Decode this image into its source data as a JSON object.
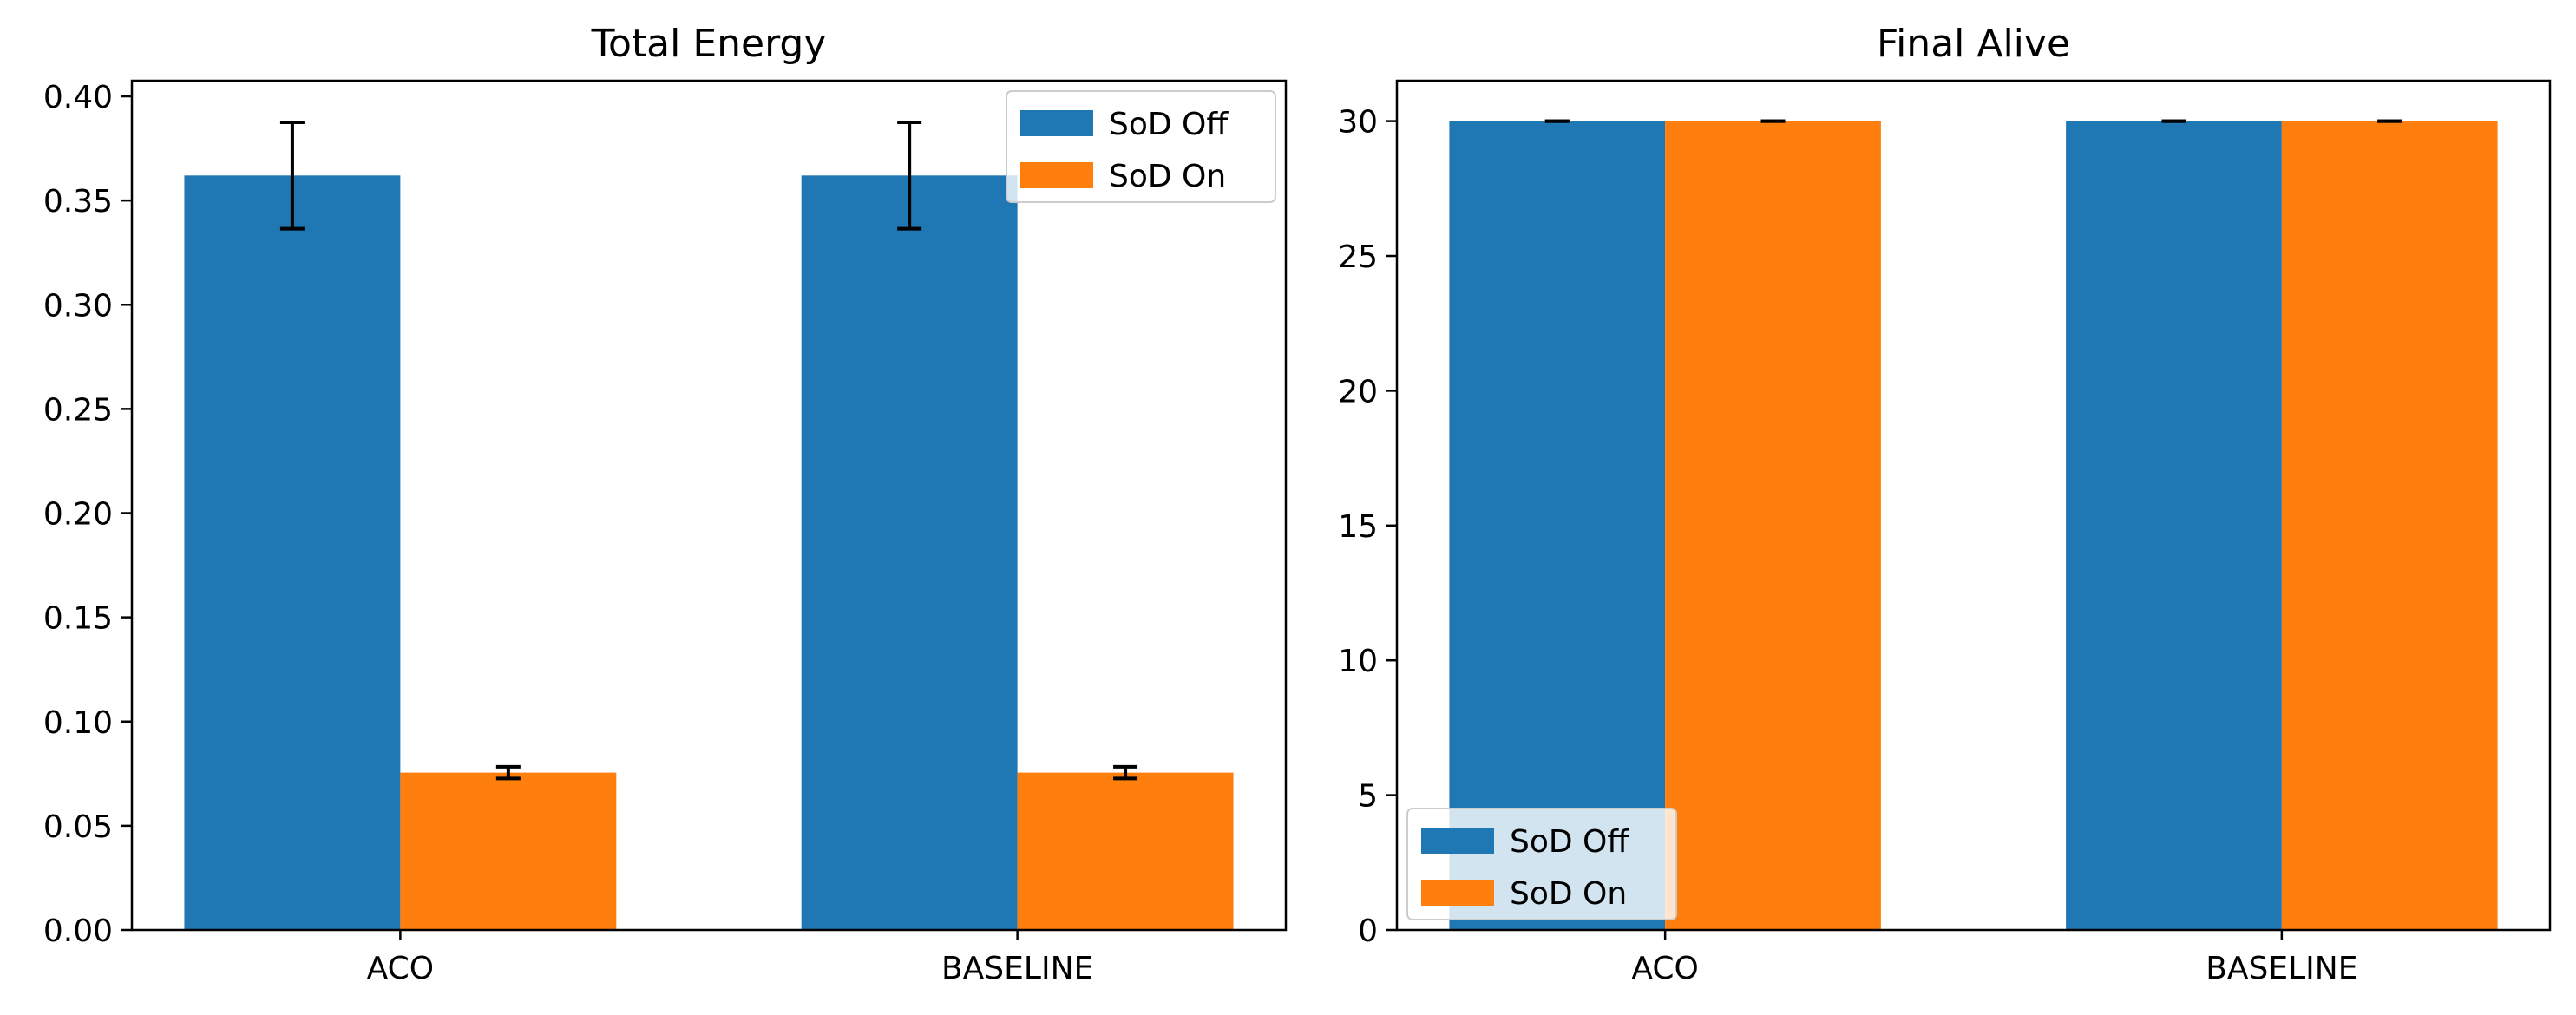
{
  "colors": {
    "sod_off": "#1f77b4",
    "sod_on": "#ff7f0e"
  },
  "chart_data": [
    {
      "type": "bar",
      "title": "Total Energy",
      "categories": [
        "ACO",
        "BASELINE"
      ],
      "series": [
        {
          "name": "SoD Off",
          "values": [
            0.362,
            0.362
          ],
          "errors": [
            0.0255,
            0.0255
          ]
        },
        {
          "name": "SoD On",
          "values": [
            0.0755,
            0.0755
          ],
          "errors": [
            0.0028,
            0.0028
          ]
        }
      ],
      "ylim": [
        0,
        0.4075
      ],
      "yticks": [
        "0.00",
        "0.05",
        "0.10",
        "0.15",
        "0.20",
        "0.25",
        "0.30",
        "0.35",
        "0.40"
      ],
      "ytick_values": [
        0,
        0.05,
        0.1,
        0.15,
        0.2,
        0.25,
        0.3,
        0.35,
        0.4
      ],
      "grid": false,
      "legend": "upper right"
    },
    {
      "type": "bar",
      "title": "Final Alive",
      "categories": [
        "ACO",
        "BASELINE"
      ],
      "series": [
        {
          "name": "SoD Off",
          "values": [
            30,
            30
          ],
          "errors": [
            0,
            0
          ]
        },
        {
          "name": "SoD On",
          "values": [
            30,
            30
          ],
          "errors": [
            0,
            0
          ]
        }
      ],
      "ylim": [
        0,
        31.5
      ],
      "yticks": [
        "0",
        "5",
        "10",
        "15",
        "20",
        "25",
        "30"
      ],
      "ytick_values": [
        0,
        5,
        10,
        15,
        20,
        25,
        30
      ],
      "grid": false,
      "legend": "lower left"
    }
  ]
}
